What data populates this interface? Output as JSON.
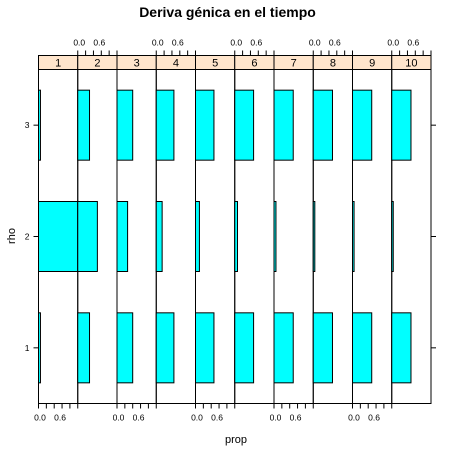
{
  "chart_data": {
    "type": "bar",
    "orientation": "horizontal",
    "layout": "trellis",
    "title": "Deriva génica en el tiempo",
    "xlabel": "prop",
    "ylabel": "rho",
    "xlim": [
      0,
      1
    ],
    "x_tick_labels": [
      "0.0",
      "0.6"
    ],
    "x_ticks": [
      0,
      0.2,
      0.4,
      0.6,
      0.8,
      1.0
    ],
    "y_categories": [
      "1",
      "2",
      "3"
    ],
    "panels": [
      "1",
      "2",
      "3",
      "4",
      "5",
      "6",
      "7",
      "8",
      "9",
      "10"
    ],
    "series": [
      {
        "panel": "1",
        "values": {
          "1": 0.05,
          "2": 1.0,
          "3": 0.05
        }
      },
      {
        "panel": "2",
        "values": {
          "1": 0.3,
          "2": 0.5,
          "3": 0.3
        }
      },
      {
        "panel": "3",
        "values": {
          "1": 0.4,
          "2": 0.27,
          "3": 0.4
        }
      },
      {
        "panel": "4",
        "values": {
          "1": 0.45,
          "2": 0.15,
          "3": 0.45
        }
      },
      {
        "panel": "5",
        "values": {
          "1": 0.47,
          "2": 0.1,
          "3": 0.47
        }
      },
      {
        "panel": "6",
        "values": {
          "1": 0.48,
          "2": 0.07,
          "3": 0.48
        }
      },
      {
        "panel": "7",
        "values": {
          "1": 0.49,
          "2": 0.05,
          "3": 0.49
        }
      },
      {
        "panel": "8",
        "values": {
          "1": 0.49,
          "2": 0.04,
          "3": 0.49
        }
      },
      {
        "panel": "9",
        "values": {
          "1": 0.49,
          "2": 0.04,
          "3": 0.49
        }
      },
      {
        "panel": "10",
        "values": {
          "1": 0.49,
          "2": 0.03,
          "3": 0.49
        }
      }
    ],
    "colors": {
      "bar_fill": "#00FFFF",
      "strip_fill": "#FFE5CC",
      "line": "#000000"
    },
    "grid": false,
    "axis_alternation": "top axis labels on even panels, bottom axis labels on odd panels"
  }
}
